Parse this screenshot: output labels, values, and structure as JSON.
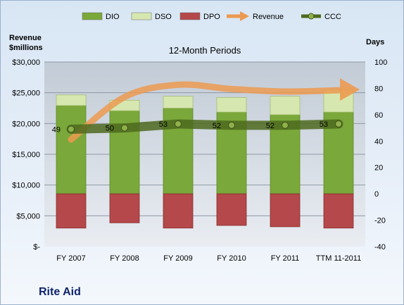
{
  "company": "Rite Aid",
  "chart_data": {
    "type": "bar",
    "title": "12-Month Periods",
    "left_axis_title": [
      "Revenue",
      "$millions"
    ],
    "right_axis_title": "Days",
    "categories": [
      "FY 2007",
      "FY 2008",
      "FY 2009",
      "FY 2010",
      "FY 2011",
      "TTM 11-2011"
    ],
    "left_axis": {
      "min": 0,
      "max": 30000,
      "step": 5000,
      "tick_labels": [
        "$-",
        "$5,000",
        "$10,000",
        "$15,000",
        "$20,000",
        "$25,000",
        "$30,000"
      ]
    },
    "right_axis": {
      "min": -40,
      "max": 100,
      "step": 20
    },
    "legend_position": "top",
    "series": [
      {
        "name": "DIO",
        "type": "stacked-bar",
        "color": "#7aa83a",
        "values": [
          67,
          63,
          65,
          62,
          60,
          62
        ]
      },
      {
        "name": "DSO",
        "type": "stacked-bar",
        "color": "#d7e7b0",
        "values": [
          8,
          8,
          9,
          11,
          14,
          17
        ]
      },
      {
        "name": "DPO",
        "type": "stacked-bar",
        "color": "#b4484a",
        "values": [
          -26,
          -22,
          -26,
          -24,
          -25,
          -26
        ]
      },
      {
        "name": "Revenue",
        "type": "trend-arrow",
        "color": "#ec9a50",
        "values": [
          17400,
          24300,
          26300,
          25600,
          25200,
          25400
        ]
      },
      {
        "name": "CCC",
        "type": "line",
        "color": "#5a7a22",
        "values": [
          49,
          50,
          53,
          52,
          52,
          53
        ],
        "labels": [
          "49",
          "50",
          "53",
          "52",
          "52",
          "53"
        ]
      }
    ]
  }
}
